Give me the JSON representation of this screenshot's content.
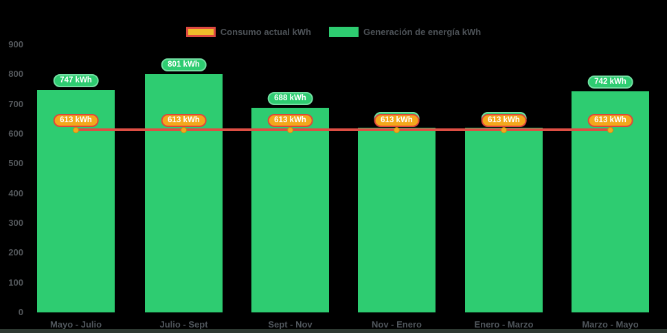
{
  "legend": {
    "consumption_label": "Consumo actual kWh",
    "generation_label": "Generación de energía kWh"
  },
  "colors": {
    "background": "#000000",
    "bar_green": "#2ecc71",
    "green_pill_border": "#72dfa2",
    "line_red": "#dd4e44",
    "marker_orange": "#f3a81c",
    "marker_border": "#cf8a12",
    "orange_pill_fill": "#f3a81c",
    "orange_pill_border": "#e0463c",
    "legend_swatch_yellow": "#eebc2b",
    "legend_swatch_red_border": "#de4a41",
    "axis_text_gray": "#54585c",
    "bottom_bar": "#2e3a32"
  },
  "chart_data": {
    "type": "bar+line",
    "title": "",
    "unit": "kWh",
    "categories": [
      "Mayo - Julio",
      "Julio - Sept",
      "Sept - Nov",
      "Nov - Enero",
      "Enero - Marzo",
      "Marzo - Mayo"
    ],
    "series": [
      {
        "name": "Generación de energía kWh",
        "type": "bar",
        "color": "#2ecc71",
        "values": [
          747,
          801,
          688,
          620,
          620,
          742
        ],
        "data_label_style": "green-pill"
      },
      {
        "name": "Consumo actual kWh",
        "type": "line",
        "color": "#dd4e44",
        "marker_color": "#f3a81c",
        "values": [
          613,
          613,
          613,
          613,
          613,
          613
        ],
        "data_label_style": "orange-pill"
      }
    ],
    "ylim": [
      0,
      900
    ],
    "ytick_step": 100,
    "yticks": [
      0,
      100,
      200,
      300,
      400,
      500,
      600,
      700,
      800,
      900
    ],
    "grid": false,
    "legend_position": "top-center",
    "data_labels": true
  }
}
